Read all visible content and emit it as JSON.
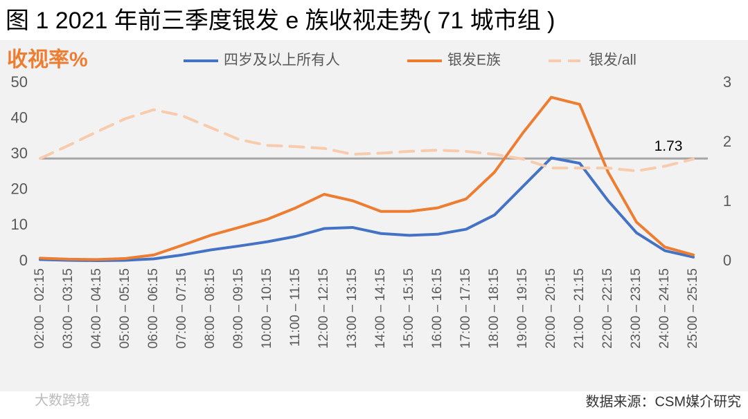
{
  "chart_data": {
    "type": "line",
    "title": "图 1  2021 年前三季度银发 e 族收视走势( 71 城市组 )",
    "y_label": "收视率%",
    "source": "数据来源：CSM媒介研究",
    "watermark": "大数跨境",
    "categories": [
      "02:00 – 02:15",
      "03:00 – 03:15",
      "04:00 – 04:15",
      "05:00 – 05:15",
      "06:00 – 06:15",
      "07:00 – 07:15",
      "08:00 – 08:15",
      "09:00 – 09:15",
      "10:00 – 10:15",
      "11:00 – 11:15",
      "12:00 – 12:15",
      "13:00 – 13:15",
      "14:00 – 14:15",
      "15:00 – 15:15",
      "16:00 – 16:15",
      "17:00 – 17:15",
      "18:00 – 18:15",
      "19:00 – 19:15",
      "20:00 – 20:15",
      "21:00 – 21:15",
      "22:00 – 22:15",
      "23:00 – 23:15",
      "24:00 – 24:15",
      "25:00 – 25:15"
    ],
    "series": [
      {
        "name": "四岁及以上所有人",
        "color": "#4472c4",
        "values": [
          0.5,
          0.3,
          0.2,
          0.3,
          0.7,
          1.8,
          3.2,
          4.3,
          5.5,
          7,
          9.2,
          9.5,
          7.8,
          7.3,
          7.6,
          9,
          13,
          21,
          29,
          27.5,
          17,
          8,
          3,
          1.2
        ]
      },
      {
        "name": "银发E族",
        "color": "#ed7d31",
        "values": [
          0.9,
          0.6,
          0.5,
          0.8,
          1.8,
          4.5,
          7.3,
          9.5,
          11.8,
          15,
          18.8,
          17,
          14,
          14,
          15,
          17.5,
          25,
          36,
          46,
          44,
          25,
          11,
          4,
          1.8
        ]
      },
      {
        "name": "银发/all",
        "color": "#f8cbad",
        "dashed": true,
        "axis": "y2",
        "values": [
          1.73,
          1.95,
          2.18,
          2.4,
          2.55,
          2.45,
          2.25,
          2.05,
          1.95,
          1.93,
          1.9,
          1.8,
          1.82,
          1.85,
          1.87,
          1.85,
          1.8,
          1.72,
          1.57,
          1.57,
          1.57,
          1.52,
          1.6,
          1.72
        ]
      }
    ],
    "reference_line": 1.73,
    "reference_color": "#a6a6a6",
    "ylim": [
      0,
      50
    ],
    "yticks": [
      0,
      10,
      20,
      30,
      40,
      50
    ],
    "y2lim": [
      0,
      3
    ],
    "y2ticks": [
      0,
      1,
      2,
      3
    ]
  }
}
